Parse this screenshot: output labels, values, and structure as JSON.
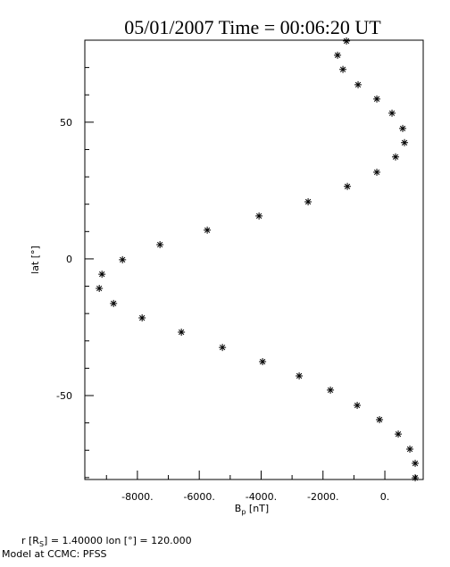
{
  "chart_data": {
    "type": "scatter",
    "title": "05/01/2007 Time = 00:06:20 UT",
    "x_label": [
      {
        "text": "B"
      },
      {
        "text": "p",
        "sub": true
      },
      {
        "text": " [nT]"
      }
    ],
    "y_label": "lat  [°]",
    "annotations": [
      [
        {
          "text": "r [R"
        },
        {
          "text": "S",
          "sub": true
        },
        {
          "text": "] = 1.40000    lon [°] = 120.000"
        }
      ],
      [
        {
          "text": "Model at CCMC: PFSS"
        }
      ]
    ],
    "color": "#000000",
    "xlim": [
      -9700,
      1240
    ],
    "ylim": [
      -80.7,
      80
    ],
    "xticks": [
      {
        "value": -8000,
        "label": "-8000."
      },
      {
        "value": -6000,
        "label": "-6000."
      },
      {
        "value": -4000,
        "label": "-4000."
      },
      {
        "value": -2000,
        "label": "-2000."
      },
      {
        "value": 0,
        "label": "0."
      }
    ],
    "xminorticks": [
      -9000,
      -7000,
      -5000,
      -3000,
      -1000,
      1000
    ],
    "yticks": [
      -50,
      0,
      50
    ],
    "yminorticks": [
      -80,
      -70,
      -60,
      -40,
      -30,
      -20,
      -10,
      10,
      20,
      30,
      40,
      60,
      70,
      80
    ],
    "x": [
      -1241,
      -1529,
      -1356,
      -866,
      -260,
      231,
      577,
      635,
      346,
      -260,
      -1212,
      -2481,
      -4068,
      -5742,
      -7271,
      -8482,
      -9146,
      -9233,
      -8771,
      -7848,
      -6578,
      -5251,
      -3953,
      -2770,
      -1760,
      -894,
      -173,
      433,
      808,
      981,
      981
    ],
    "values": [
      79.7,
      74.5,
      69.3,
      63.7,
      58.5,
      53.3,
      47.7,
      42.5,
      37.3,
      31.7,
      26.5,
      20.9,
      15.7,
      10.5,
      5.2,
      -0.3,
      -5.6,
      -10.8,
      -16.3,
      -21.6,
      -26.8,
      -32.4,
      -37.6,
      -42.8,
      -48.0,
      -53.6,
      -58.8,
      -64.1,
      -69.6,
      -74.8,
      -80.1
    ]
  }
}
